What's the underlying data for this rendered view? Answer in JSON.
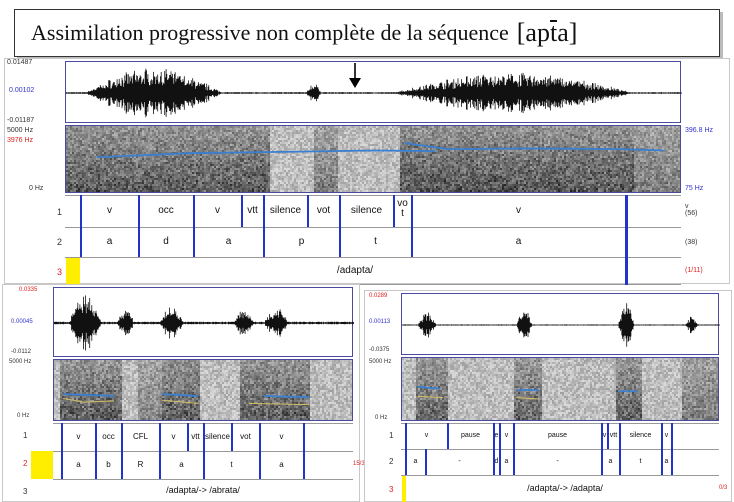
{
  "title": {
    "text": "Assimilation  progressive non complète de la séquence",
    "ipa": "[apta]"
  },
  "colors": {
    "boundary": "#2233cc",
    "pitch": "#3a7fd0",
    "formant": "#d4c060",
    "highlight": "#ffee00"
  },
  "main": {
    "amp_top": "0.01487",
    "amp_mid": "0.00102",
    "amp_bot": "-0.01187",
    "spec_max": "5000 Hz",
    "spec_red": "3976 Hz",
    "spec_min": "0 Hz",
    "pitch_max": "396.8 Hz",
    "pitch_min": "75 Hz",
    "tier1": {
      "num": "1",
      "right": "v\n(56)",
      "labels": [
        "v",
        "occ",
        "v",
        "vtt",
        "silence",
        "vot",
        "silence",
        "vo\nt",
        "v"
      ]
    },
    "tier2": {
      "num": "2",
      "right": "(38)",
      "labels": [
        "a",
        "d",
        "a",
        "p",
        "t",
        "a"
      ]
    },
    "tier3": {
      "num": "3",
      "right": "(1/11)",
      "label": "/adapta/"
    }
  },
  "left": {
    "amp_top": "0.0335",
    "amp_mid": "0.00045",
    "amp_bot": "-0.0112",
    "spec_max": "5000 Hz",
    "spec_min": "0 Hz",
    "tier1": {
      "num": "1",
      "labels": [
        "v",
        "occ",
        "CFL",
        "v",
        "vtt",
        "silence",
        "vot",
        "v"
      ]
    },
    "tier2": {
      "num": "2",
      "right": "15/3",
      "labels": [
        "a",
        "b",
        "R",
        "a",
        "t",
        "a"
      ]
    },
    "tier3": {
      "num": "3",
      "label": "/adapta/-> /abrata/"
    }
  },
  "right": {
    "amp_top": "0.0289",
    "amp_mid": "0.00113",
    "amp_bot": "-0.0375",
    "spec_max": "5000 Hz",
    "spec_min": "0 Hz",
    "tier1": {
      "num": "1",
      "labels": [
        "v",
        "pause",
        "e",
        "v",
        "pause",
        "v",
        "vtt",
        "silence",
        "v"
      ]
    },
    "tier2": {
      "num": "2",
      "labels": [
        "a",
        "-",
        "d",
        "a",
        "-",
        "a",
        "t",
        "a"
      ]
    },
    "tier3": {
      "num": "3",
      "right": "0/3",
      "label": "/adapta/-> /adapta/"
    }
  }
}
